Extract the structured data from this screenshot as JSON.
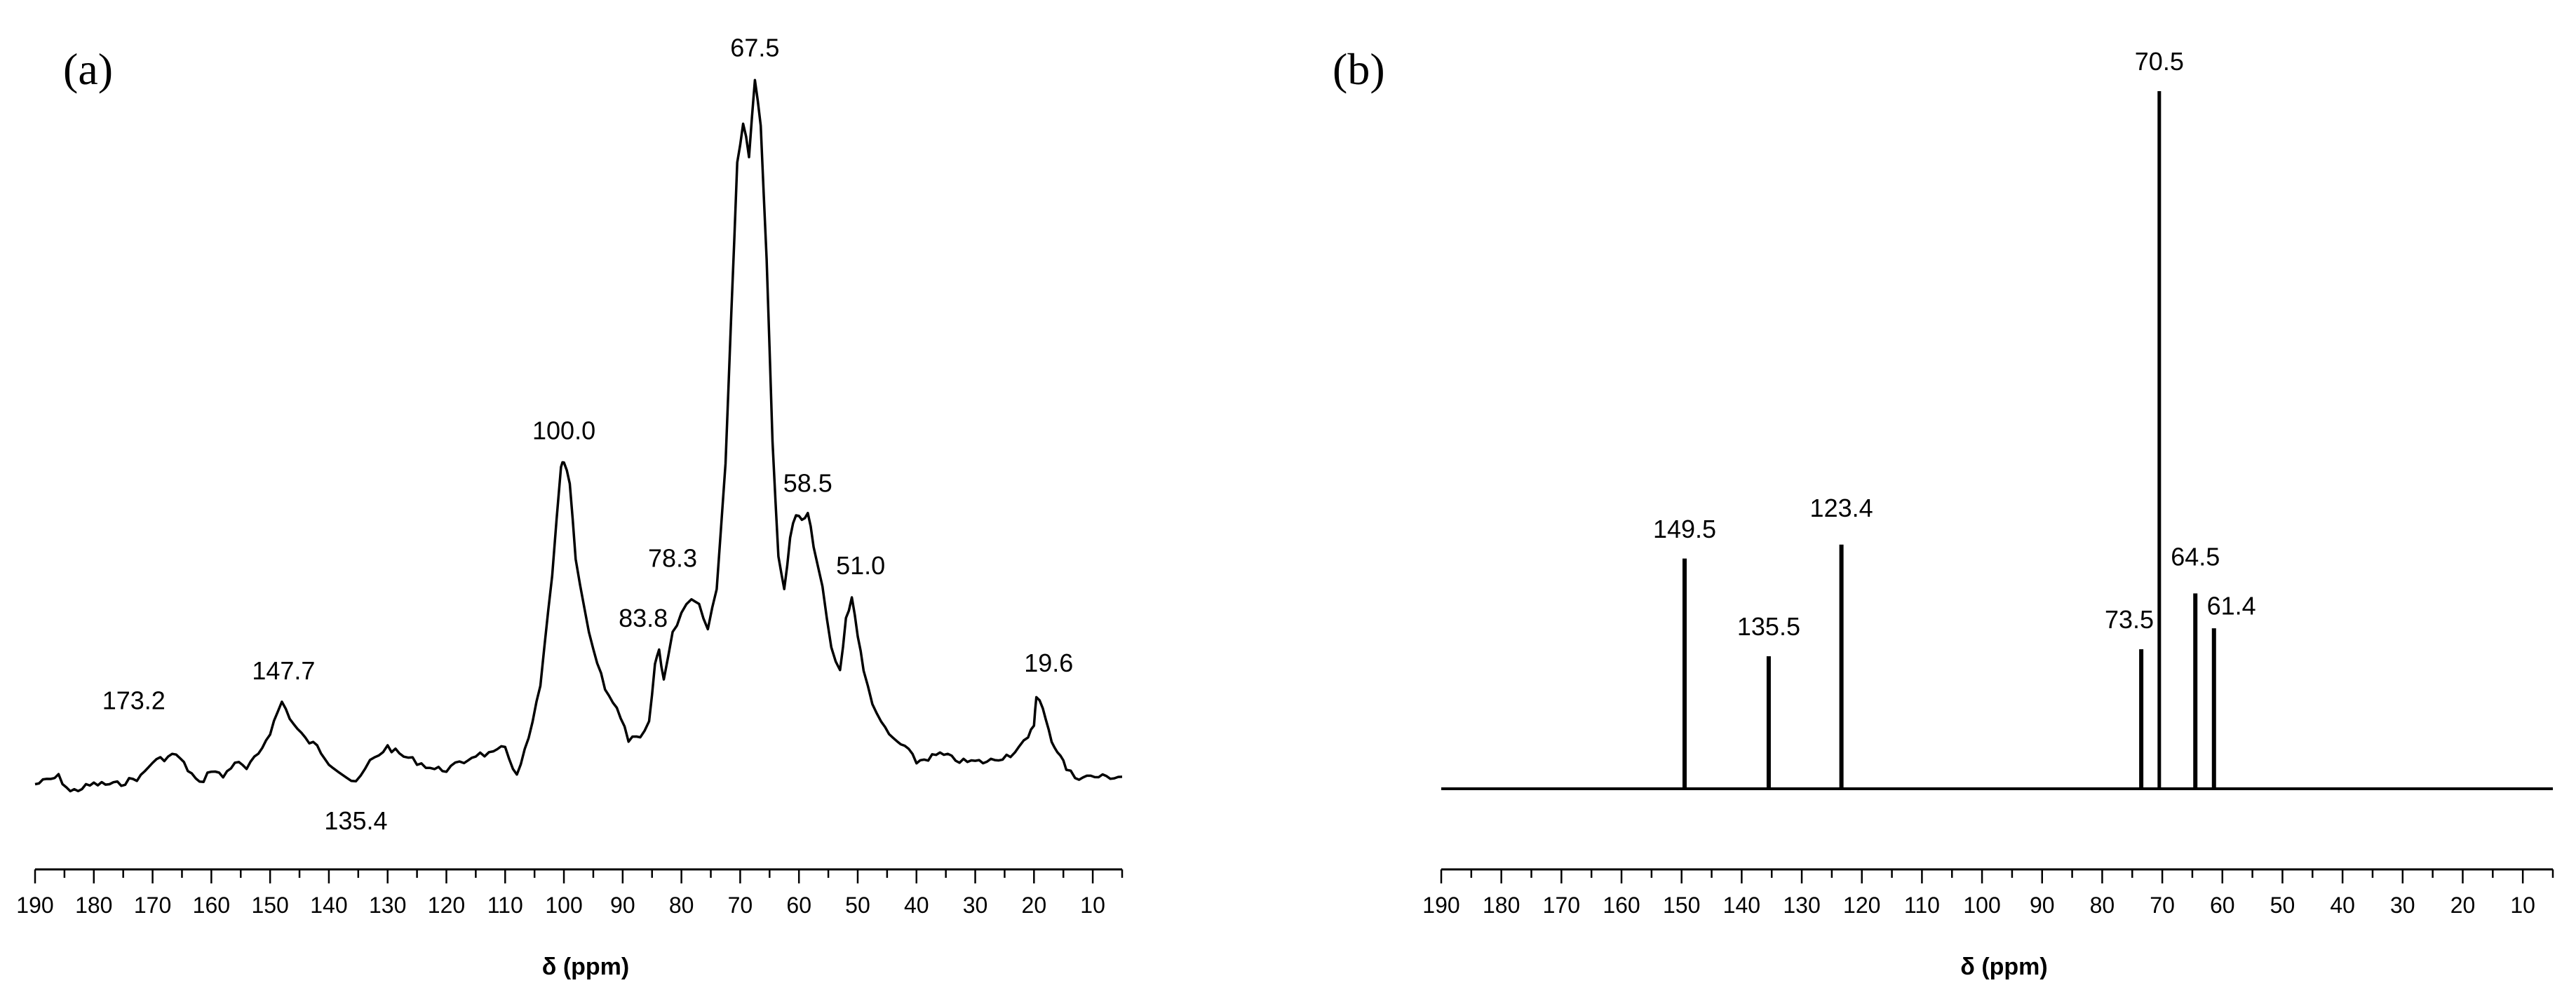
{
  "chart_data": [
    {
      "panel_label": "(a)",
      "type": "line",
      "xlabel": "δ (ppm)",
      "xlim": [
        190,
        5
      ],
      "ylim": [
        0,
        100
      ],
      "x_ticks": [
        190,
        180,
        170,
        160,
        150,
        140,
        130,
        120,
        110,
        100,
        90,
        80,
        70,
        60,
        50,
        40,
        30,
        20,
        10
      ],
      "grid": false,
      "series": [
        {
          "name": "spectrum",
          "x": [
            190,
            186,
            184,
            180,
            176,
            172,
            170,
            166,
            164,
            162,
            160,
            158,
            156,
            154,
            152,
            150,
            148,
            146,
            144,
            142,
            140,
            137,
            135.4,
            133,
            130,
            128,
            125,
            122,
            120,
            117,
            115,
            112,
            110,
            108,
            106,
            104,
            102,
            100.5,
            100,
            99,
            98,
            96.5,
            95,
            93,
            91,
            89,
            87,
            85.5,
            84.5,
            83.8,
            83,
            81.5,
            80,
            78.3,
            77,
            75.5,
            74,
            72.5,
            71.5,
            70.5,
            69.5,
            68.5,
            67.5,
            66.5,
            65.5,
            64.5,
            63.5,
            62.5,
            61.5,
            60.5,
            59.5,
            58.5,
            57.5,
            56,
            54.5,
            53,
            52,
            51,
            50,
            49,
            47.5,
            46,
            44,
            42,
            40,
            36,
            32,
            28,
            24,
            21,
            20,
            19.6,
            18.5,
            17.5,
            16.5,
            15.5,
            14.5,
            13,
            11,
            9,
            7,
            5
          ],
          "y": [
            2,
            3,
            1,
            2,
            2,
            3,
            5,
            6,
            4,
            2,
            4,
            3,
            5,
            4,
            6,
            9,
            13,
            10,
            8,
            7,
            5,
            3,
            2,
            5,
            7,
            6,
            5,
            4,
            4,
            5,
            6,
            6,
            7,
            3,
            8,
            15,
            30,
            44,
            45,
            42,
            32,
            25,
            20,
            15,
            12,
            8,
            8,
            10,
            18,
            20,
            16,
            22,
            25,
            27,
            26,
            23,
            28,
            45,
            65,
            85,
            90,
            86,
            96,
            90,
            72,
            48,
            32,
            28,
            35,
            38,
            37,
            38,
            34,
            28,
            20,
            17,
            24,
            27,
            22,
            17,
            13,
            10,
            8,
            7,
            5,
            6,
            5,
            5,
            6,
            8,
            10,
            14,
            12,
            9,
            7,
            6,
            4,
            3,
            3,
            3,
            3,
            3
          ]
        }
      ],
      "annotations": [
        {
          "text": "173.2",
          "x": 173.2,
          "y": 12
        },
        {
          "text": "147.7",
          "x": 147.7,
          "y": 16
        },
        {
          "text": "135.4",
          "x": 135.4,
          "y": -4
        },
        {
          "text": "100.0",
          "x": 100.0,
          "y": 48
        },
        {
          "text": "83.8",
          "x": 86.5,
          "y": 23
        },
        {
          "text": "78.3",
          "x": 81.5,
          "y": 31
        },
        {
          "text": "67.5",
          "x": 67.5,
          "y": 99
        },
        {
          "text": "58.5",
          "x": 58.5,
          "y": 41
        },
        {
          "text": "51.0",
          "x": 49.5,
          "y": 30
        },
        {
          "text": "19.6",
          "x": 17.5,
          "y": 17
        }
      ]
    },
    {
      "panel_label": "(b)",
      "type": "line",
      "xlabel": "δ (ppm)",
      "xlim": [
        190,
        5
      ],
      "ylim": [
        0,
        100
      ],
      "x_ticks": [
        190,
        180,
        170,
        160,
        150,
        140,
        130,
        120,
        110,
        100,
        90,
        80,
        70,
        60,
        50,
        40,
        30,
        20,
        10
      ],
      "grid": false,
      "series": [
        {
          "name": "spectrum",
          "peaks": [
            {
              "x": 149.5,
              "y": 33
            },
            {
              "x": 135.5,
              "y": 19
            },
            {
              "x": 123.4,
              "y": 35
            },
            {
              "x": 73.5,
              "y": 20
            },
            {
              "x": 70.5,
              "y": 100
            },
            {
              "x": 64.5,
              "y": 28
            },
            {
              "x": 61.4,
              "y": 23
            }
          ]
        }
      ],
      "annotations": [
        {
          "text": "149.5",
          "x": 149.5,
          "y": 36
        },
        {
          "text": "135.5",
          "x": 135.5,
          "y": 22
        },
        {
          "text": "123.4",
          "x": 123.4,
          "y": 39
        },
        {
          "text": "73.5",
          "x": 75.5,
          "y": 23
        },
        {
          "text": "70.5",
          "x": 70.5,
          "y": 103
        },
        {
          "text": "64.5",
          "x": 64.5,
          "y": 32
        },
        {
          "text": "61.4",
          "x": 58.5,
          "y": 25
        }
      ]
    }
  ]
}
